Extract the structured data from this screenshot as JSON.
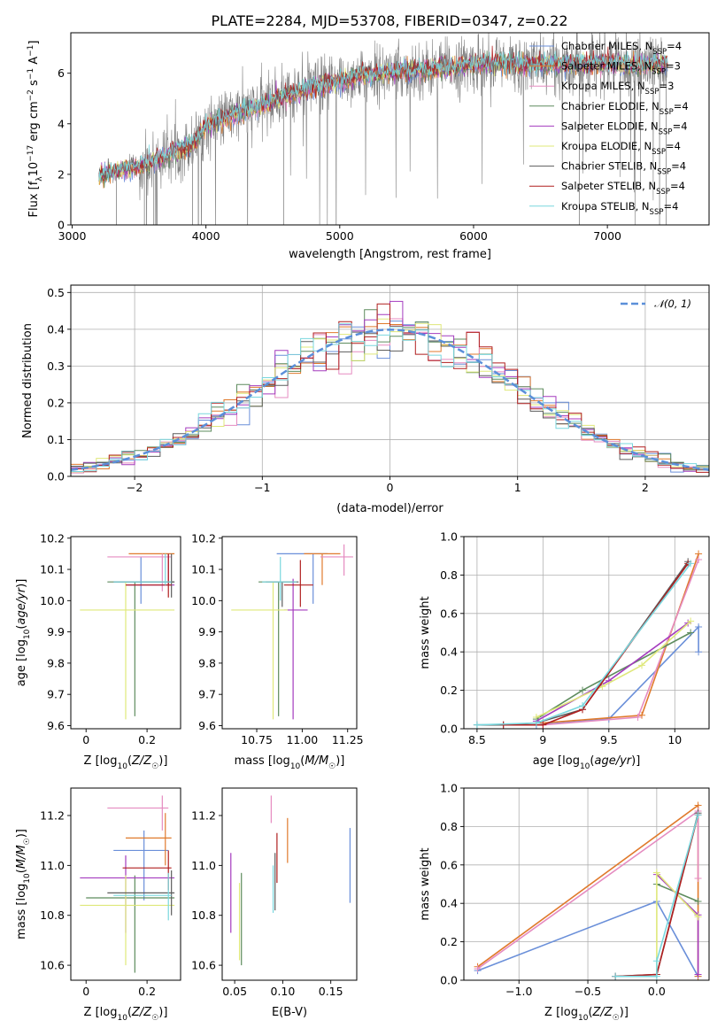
{
  "figure_title": "PLATE=2284, MJD=53708, FIBERID=0347, z=0.22",
  "colors": {
    "Chabrier MILES": "#6a8fd9",
    "Salpeter MILES": "#e07a2c",
    "Kroupa MILES": "#e58bc0",
    "Chabrier ELODIE": "#5e8c5e",
    "Salpeter ELODIE": "#a43bbe",
    "Kroupa ELODIE": "#dfe87a",
    "Chabrier STELIB": "#5d5d5d",
    "Salpeter STELIB": "#b01f1f",
    "Kroupa STELIB": "#79d7de",
    "normal_curve": "#5b8fd9",
    "data_spectrum": "#808080"
  },
  "chart_data": [
    {
      "id": "spectrum",
      "type": "line",
      "xlabel": "wavelength [Angstrom, rest frame]",
      "ylabel": "Flux [f_λ 10^-17 erg cm^-2 s^-1 A^-1]",
      "xlim": [
        2990,
        7760
      ],
      "ylim": [
        0,
        7.6
      ],
      "xticks": [
        3000,
        4000,
        5000,
        6000,
        7000
      ],
      "yticks": [
        0,
        2,
        4,
        6
      ],
      "legend_position": "right",
      "legend": [
        {
          "label": "Chabrier MILES",
          "nssp": "4"
        },
        {
          "label": "Salpeter MILES",
          "nssp": "3"
        },
        {
          "label": "Kroupa MILES",
          "nssp": "3"
        },
        {
          "label": "Chabrier ELODIE",
          "nssp": "4"
        },
        {
          "label": "Salpeter ELODIE",
          "nssp": "4"
        },
        {
          "label": "Kroupa ELODIE",
          "nssp": "4"
        },
        {
          "label": "Chabrier STELIB",
          "nssp": "4"
        },
        {
          "label": "Salpeter STELIB",
          "nssp": "4"
        },
        {
          "label": "Kroupa STELIB",
          "nssp": "4"
        }
      ],
      "data_range": [
        3200,
        7450
      ],
      "continuum": {
        "x": [
          3200,
          3350,
          3500,
          3700,
          3900,
          4000,
          4200,
          4400,
          4600,
          4800,
          5000,
          5200,
          5400,
          5600,
          5800,
          6000,
          6200,
          6400,
          6600,
          6800,
          7000,
          7200,
          7400
        ],
        "y": [
          1.95,
          2.15,
          2.3,
          2.7,
          3.2,
          3.9,
          4.35,
          4.7,
          5.1,
          5.45,
          5.7,
          5.95,
          6.05,
          6.15,
          6.2,
          6.35,
          6.4,
          6.3,
          6.35,
          6.4,
          6.4,
          6.3,
          6.4
        ]
      }
    },
    {
      "id": "residual_hist",
      "type": "line",
      "xlabel": "(data-model)/error",
      "ylabel": "Normed distribution",
      "xlim": [
        -2.5,
        2.5
      ],
      "ylim": [
        0,
        0.52
      ],
      "xticks": [
        -2,
        -1,
        0,
        1,
        2
      ],
      "xtick_labels": [
        "−2",
        "−1",
        "0",
        "1",
        "2"
      ],
      "yticks": [
        0.0,
        0.1,
        0.2,
        0.3,
        0.4,
        0.5
      ],
      "grid": true,
      "bin_width": 0.1,
      "legend_label": "𝒩(0, 1)",
      "legend_position": "top-right"
    },
    {
      "id": "age_vs_Z",
      "type": "scatter",
      "xlabel": "Z [log10(Z/Z☉)]",
      "ylabel": "age [log10(age/yr)]",
      "xlim": [
        -0.05,
        0.31
      ],
      "ylim": [
        9.59,
        10.205
      ],
      "xticks": [
        0.0,
        0.2
      ],
      "yticks": [
        9.6,
        9.7,
        9.8,
        9.9,
        10.0,
        10.1,
        10.2
      ],
      "points": [
        {
          "m": "Chabrier MILES",
          "x": 0.18,
          "xe": [
            0.09,
            0.28
          ],
          "y": 10.06,
          "ye": [
            9.99,
            10.14
          ]
        },
        {
          "m": "Salpeter MILES",
          "x": 0.27,
          "xe": [
            0.14,
            0.29
          ],
          "y": 10.15,
          "ye": [
            10.05,
            10.15
          ]
        },
        {
          "m": "Kroupa MILES",
          "x": 0.25,
          "xe": [
            0.07,
            0.28
          ],
          "y": 10.14,
          "ye": [
            10.03,
            10.15
          ]
        },
        {
          "m": "Chabrier ELODIE",
          "x": 0.16,
          "xe": [
            0.07,
            0.29
          ],
          "y": 10.06,
          "ye": [
            9.63,
            10.06
          ]
        },
        {
          "m": "Salpeter ELODIE",
          "x": 0.27,
          "xe": [
            0.13,
            0.29
          ],
          "y": 10.05,
          "ye": [
            10.05,
            10.15
          ]
        },
        {
          "m": "Kroupa ELODIE",
          "x": 0.13,
          "xe": [
            -0.02,
            0.29
          ],
          "y": 9.97,
          "ye": [
            9.62,
            10.06
          ]
        },
        {
          "m": "Chabrier STELIB",
          "x": 0.28,
          "xe": [
            0.09,
            0.29
          ],
          "y": 10.06,
          "ye": [
            10.01,
            10.15
          ]
        },
        {
          "m": "Salpeter STELIB",
          "x": 0.27,
          "xe": [
            0.13,
            0.28
          ],
          "y": 10.05,
          "ye": [
            10.01,
            10.15
          ]
        },
        {
          "m": "Kroupa STELIB",
          "x": 0.26,
          "xe": [
            0.09,
            0.28
          ],
          "y": 10.06,
          "ye": [
            10.05,
            10.15
          ]
        }
      ]
    },
    {
      "id": "age_vs_mass",
      "type": "scatter",
      "xlabel": "mass [log10(M/M☉)]",
      "ylabel": "",
      "xlim": [
        10.56,
        11.3
      ],
      "ylim": [
        9.59,
        10.205
      ],
      "xticks": [
        10.75,
        11.0,
        11.25
      ],
      "xtick_labels": [
        "10.75",
        "11.00",
        "11.25"
      ],
      "yticks": [
        9.6,
        9.7,
        9.8,
        9.9,
        10.0,
        10.1,
        10.2
      ],
      "points": [
        {
          "m": "Chabrier MILES",
          "x": 11.06,
          "xe": [
            10.86,
            11.14
          ],
          "y": 10.15,
          "ye": [
            9.99,
            10.15
          ]
        },
        {
          "m": "Salpeter MILES",
          "x": 11.11,
          "xe": [
            11.01,
            11.21
          ],
          "y": 10.15,
          "ye": [
            10.05,
            10.15
          ]
        },
        {
          "m": "Kroupa MILES",
          "x": 11.23,
          "xe": [
            11.1,
            11.28
          ],
          "y": 10.14,
          "ye": [
            10.08,
            10.18
          ]
        },
        {
          "m": "Chabrier ELODIE",
          "x": 10.87,
          "xe": [
            10.76,
            10.97
          ],
          "y": 10.06,
          "ye": [
            9.63,
            10.06
          ]
        },
        {
          "m": "Salpeter ELODIE",
          "x": 10.95,
          "xe": [
            10.9,
            11.03
          ],
          "y": 9.97,
          "ye": [
            9.62,
            10.07
          ]
        },
        {
          "m": "Kroupa ELODIE",
          "x": 10.84,
          "xe": [
            10.61,
            10.92
          ],
          "y": 9.97,
          "ye": [
            9.62,
            10.06
          ]
        },
        {
          "m": "Chabrier STELIB",
          "x": 10.89,
          "xe": [
            10.8,
            10.98
          ],
          "y": 10.06,
          "ye": [
            9.98,
            10.06
          ]
        },
        {
          "m": "Salpeter STELIB",
          "x": 10.99,
          "xe": [
            10.9,
            11.06
          ],
          "y": 10.05,
          "ye": [
            9.98,
            10.13
          ]
        },
        {
          "m": "Kroupa STELIB",
          "x": 10.88,
          "xe": [
            10.78,
            10.97
          ],
          "y": 10.06,
          "ye": [
            10.0,
            10.14
          ]
        }
      ]
    },
    {
      "id": "weight_vs_age",
      "type": "line",
      "xlabel": "age [log10(age/yr)]",
      "ylabel": "mass weight",
      "xlim": [
        8.4,
        10.26
      ],
      "ylim": [
        0,
        1
      ],
      "xticks": [
        8.5,
        9.0,
        9.5,
        10.0
      ],
      "yticks": [
        0.0,
        0.2,
        0.4,
        0.6,
        0.8,
        1.0
      ],
      "grid": true,
      "series": [
        {
          "m": "Chabrier MILES",
          "x": [
            8.95,
            9.5,
            10.18,
            10.18
          ],
          "y": [
            0.02,
            0.05,
            0.53,
            0.4
          ]
        },
        {
          "m": "Salpeter MILES",
          "x": [
            9.0,
            9.75,
            10.18
          ],
          "y": [
            0.03,
            0.07,
            0.91
          ]
        },
        {
          "m": "Kroupa MILES",
          "x": [
            9.0,
            9.72,
            10.18
          ],
          "y": [
            0.02,
            0.06,
            0.88
          ]
        },
        {
          "m": "Chabrier ELODIE",
          "x": [
            8.95,
            9.3,
            10.12
          ],
          "y": [
            0.05,
            0.2,
            0.5
          ]
        },
        {
          "m": "Salpeter ELODIE",
          "x": [
            8.95,
            9.5,
            10.1
          ],
          "y": [
            0.04,
            0.25,
            0.55
          ]
        },
        {
          "m": "Kroupa ELODIE",
          "x": [
            8.95,
            9.45,
            9.75,
            10.12
          ],
          "y": [
            0.06,
            0.22,
            0.33,
            0.56
          ]
        },
        {
          "m": "Chabrier STELIB",
          "x": [
            8.5,
            8.7,
            8.95,
            9.3,
            10.1
          ],
          "y": [
            0.02,
            0.02,
            0.03,
            0.1,
            0.87
          ]
        },
        {
          "m": "Salpeter STELIB",
          "x": [
            8.7,
            9.0,
            9.3,
            10.1
          ],
          "y": [
            0.02,
            0.02,
            0.1,
            0.86
          ]
        },
        {
          "m": "Kroupa STELIB",
          "x": [
            8.5,
            8.95,
            9.3,
            10.12
          ],
          "y": [
            0.02,
            0.03,
            0.12,
            0.86
          ]
        }
      ]
    },
    {
      "id": "mass_vs_Z",
      "type": "scatter",
      "xlabel": "Z [log10(Z/Z☉)]",
      "ylabel": "mass [log10(M/M☉)]",
      "xlim": [
        -0.05,
        0.31
      ],
      "ylim": [
        10.54,
        11.31
      ],
      "xticks": [
        0.0,
        0.2
      ],
      "yticks": [
        10.6,
        10.8,
        11.0,
        11.2
      ],
      "points": [
        {
          "m": "Chabrier MILES",
          "x": 0.19,
          "xe": [
            0.09,
            0.27
          ],
          "y": 11.06,
          "ye": [
            10.86,
            11.14
          ]
        },
        {
          "m": "Salpeter MILES",
          "x": 0.26,
          "xe": [
            0.13,
            0.28
          ],
          "y": 11.11,
          "ye": [
            11.0,
            11.21
          ]
        },
        {
          "m": "Kroupa MILES",
          "x": 0.25,
          "xe": [
            0.07,
            0.27
          ],
          "y": 11.23,
          "ye": [
            11.14,
            11.28
          ]
        },
        {
          "m": "Chabrier ELODIE",
          "x": 0.16,
          "xe": [
            0.0,
            0.29
          ],
          "y": 10.87,
          "ye": [
            10.57,
            10.96
          ]
        },
        {
          "m": "Salpeter ELODIE",
          "x": 0.13,
          "xe": [
            -0.02,
            0.29
          ],
          "y": 10.95,
          "ye": [
            10.73,
            11.04
          ]
        },
        {
          "m": "Kroupa ELODIE",
          "x": 0.13,
          "xe": [
            -0.02,
            0.29
          ],
          "y": 10.84,
          "ye": [
            10.6,
            10.96
          ]
        },
        {
          "m": "Chabrier STELIB",
          "x": 0.28,
          "xe": [
            0.07,
            0.29
          ],
          "y": 10.89,
          "ye": [
            10.8,
            10.98
          ]
        },
        {
          "m": "Salpeter STELIB",
          "x": 0.27,
          "xe": [
            0.12,
            0.28
          ],
          "y": 10.99,
          "ye": [
            10.9,
            11.06
          ]
        },
        {
          "m": "Kroupa STELIB",
          "x": 0.27,
          "xe": [
            0.09,
            0.28
          ],
          "y": 10.88,
          "ye": [
            10.78,
            10.97
          ]
        }
      ]
    },
    {
      "id": "mass_vs_ebv",
      "type": "scatter",
      "xlabel": "E(B-V)",
      "ylabel": "",
      "xlim": [
        0.037,
        0.177
      ],
      "ylim": [
        10.54,
        11.31
      ],
      "xticks": [
        0.05,
        0.1,
        0.15
      ],
      "xtick_labels": [
        "0.05",
        "0.10",
        "0.15"
      ],
      "yticks": [
        10.6,
        10.8,
        11.0,
        11.2
      ],
      "points": [
        {
          "m": "Chabrier MILES",
          "x": 0.17,
          "ye": [
            10.85,
            11.15
          ],
          "y": 11.06
        },
        {
          "m": "Salpeter MILES",
          "x": 0.105,
          "ye": [
            11.01,
            11.19
          ],
          "y": 11.11
        },
        {
          "m": "Kroupa MILES",
          "x": 0.088,
          "ye": [
            11.17,
            11.28
          ],
          "y": 11.23
        },
        {
          "m": "Chabrier ELODIE",
          "x": 0.057,
          "ye": [
            10.6,
            10.97
          ],
          "y": 10.87
        },
        {
          "m": "Salpeter ELODIE",
          "x": 0.046,
          "ye": [
            10.73,
            11.05
          ],
          "y": 10.95
        },
        {
          "m": "Kroupa ELODIE",
          "x": 0.055,
          "ye": [
            10.62,
            10.93
          ],
          "y": 10.84
        },
        {
          "m": "Chabrier STELIB",
          "x": 0.092,
          "ye": [
            10.82,
            11.05
          ],
          "y": 10.89
        },
        {
          "m": "Salpeter STELIB",
          "x": 0.094,
          "ye": [
            10.93,
            11.13
          ],
          "y": 10.99
        },
        {
          "m": "Kroupa STELIB",
          "x": 0.09,
          "ye": [
            10.81,
            11.0
          ],
          "y": 10.88
        }
      ]
    },
    {
      "id": "weight_vs_Z",
      "type": "line",
      "xlabel": "Z [log10(Z/Z☉)]",
      "ylabel": "mass weight",
      "xlim": [
        -1.4,
        0.38
      ],
      "ylim": [
        0,
        1
      ],
      "xticks": [
        -1.0,
        -0.5,
        0.0
      ],
      "xtick_labels": [
        "−1.0",
        "−0.5",
        "0.0"
      ],
      "yticks": [
        0.0,
        0.2,
        0.4,
        0.6,
        0.8,
        1.0
      ],
      "grid": true,
      "series": [
        {
          "m": "Chabrier MILES",
          "x": [
            -1.3,
            0.0,
            0.3
          ],
          "y": [
            0.05,
            0.41,
            0.02
          ]
        },
        {
          "m": "Salpeter MILES",
          "x": [
            -1.3,
            0.3,
            0.3
          ],
          "y": [
            0.07,
            0.91,
            0.02
          ]
        },
        {
          "m": "Kroupa MILES",
          "x": [
            -1.3,
            0.3,
            0.3
          ],
          "y": [
            0.06,
            0.88,
            0.53
          ]
        },
        {
          "m": "Chabrier ELODIE",
          "x": [
            0.0,
            0.3
          ],
          "y": [
            0.5,
            0.41
          ]
        },
        {
          "m": "Salpeter ELODIE",
          "x": [
            0.0,
            0.3,
            0.3
          ],
          "y": [
            0.55,
            0.34,
            0.03
          ]
        },
        {
          "m": "Kroupa ELODIE",
          "x": [
            0.0,
            0.0,
            0.3
          ],
          "y": [
            0.03,
            0.56,
            0.33
          ]
        },
        {
          "m": "Chabrier STELIB",
          "x": [
            -0.3,
            0.0,
            0.3
          ],
          "y": [
            0.02,
            0.03,
            0.87
          ]
        },
        {
          "m": "Salpeter STELIB",
          "x": [
            -0.3,
            0.0,
            0.3
          ],
          "y": [
            0.02,
            0.03,
            0.86
          ]
        },
        {
          "m": "Kroupa STELIB",
          "x": [
            -0.3,
            0.0,
            0.0,
            0.3
          ],
          "y": [
            0.02,
            0.02,
            0.1,
            0.86
          ]
        }
      ]
    }
  ]
}
